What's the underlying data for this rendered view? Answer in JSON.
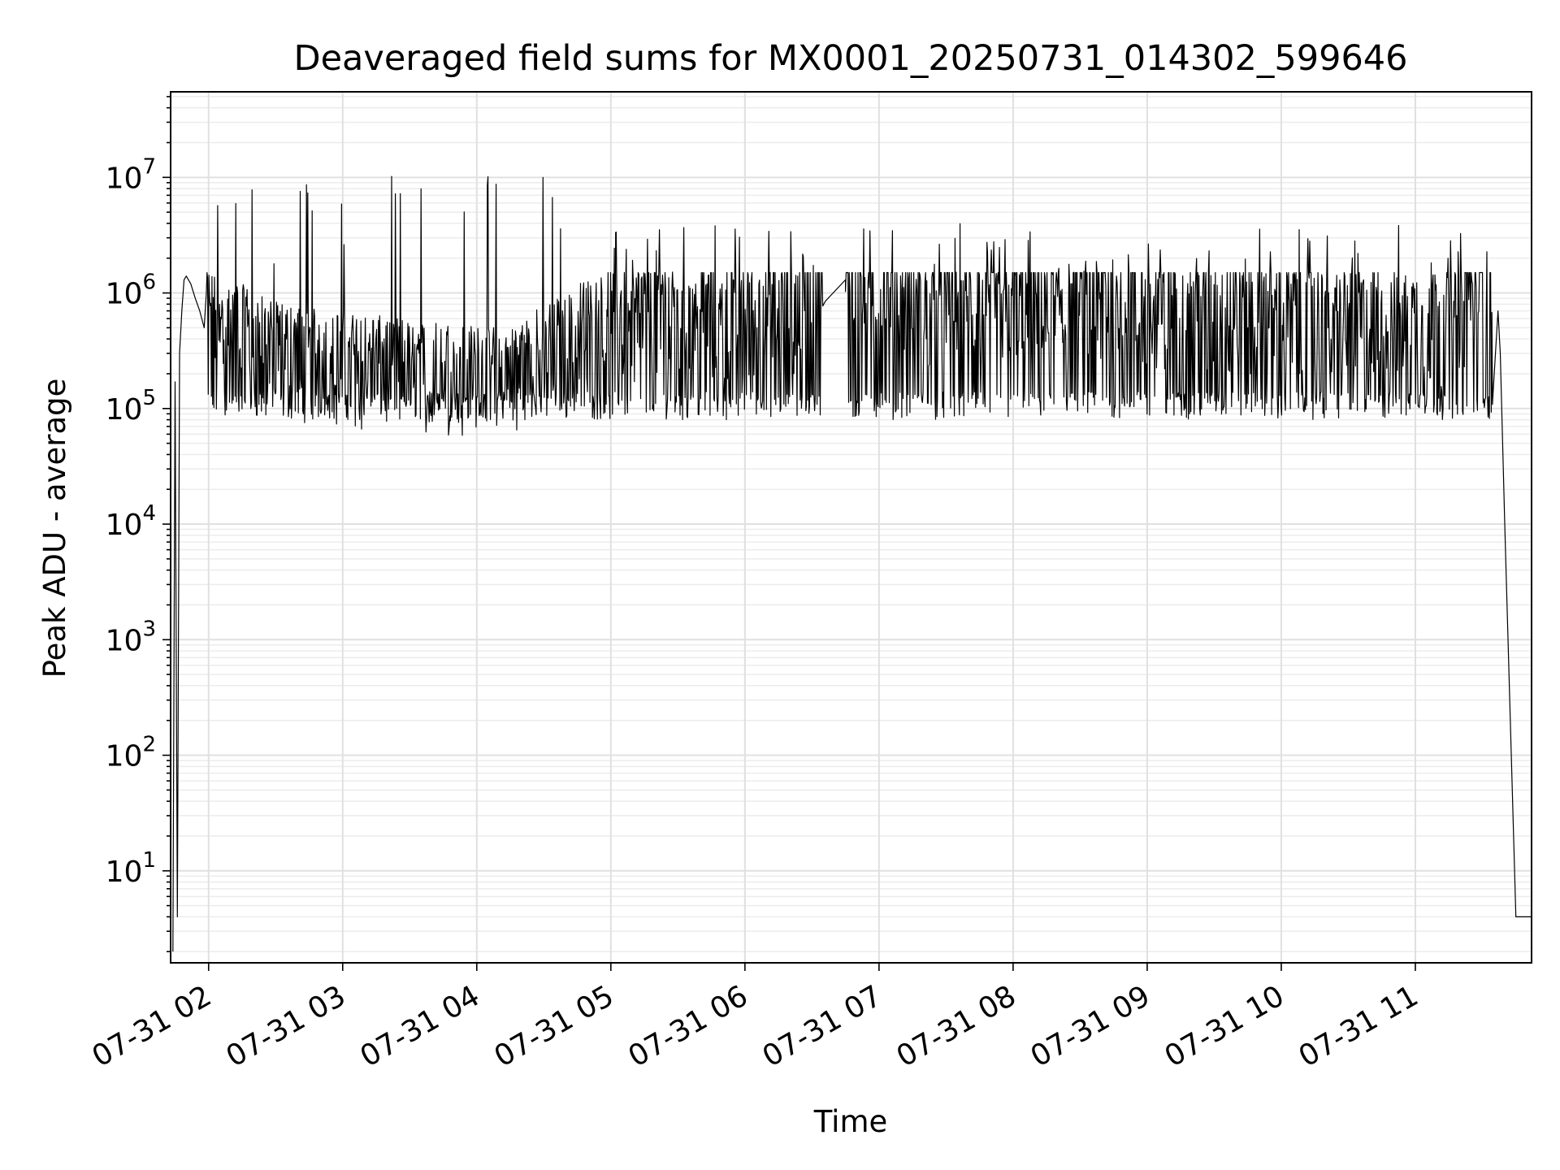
{
  "chart_data": {
    "type": "line",
    "title": "Deaveraged field sums for MX0001_20250731_014302_599646",
    "xlabel": "Time",
    "ylabel": "Peak ADU - average",
    "y_scale": "log",
    "ylim": [
      1.6,
      55000000
    ],
    "xlim": [
      "2025-07-31 01:43",
      "2025-07-31 11:52"
    ],
    "grid": "on (major and minor)",
    "series_color": "#000000",
    "x_ticks": [
      {
        "value": "2025-07-31 02:00",
        "label": "07-31 02"
      },
      {
        "value": "2025-07-31 03:00",
        "label": "07-31 03"
      },
      {
        "value": "2025-07-31 04:00",
        "label": "07-31 04"
      },
      {
        "value": "2025-07-31 05:00",
        "label": "07-31 05"
      },
      {
        "value": "2025-07-31 06:00",
        "label": "07-31 06"
      },
      {
        "value": "2025-07-31 07:00",
        "label": "07-31 07"
      },
      {
        "value": "2025-07-31 08:00",
        "label": "07-31 08"
      },
      {
        "value": "2025-07-31 09:00",
        "label": "07-31 09"
      },
      {
        "value": "2025-07-31 10:00",
        "label": "07-31 10"
      },
      {
        "value": "2025-07-31 11:00",
        "label": "07-31 11"
      }
    ],
    "y_ticks": [
      {
        "value": 10,
        "base": "10",
        "exp": "1"
      },
      {
        "value": 100,
        "base": "10",
        "exp": "2"
      },
      {
        "value": 1000,
        "base": "10",
        "exp": "3"
      },
      {
        "value": 10000,
        "base": "10",
        "exp": "4"
      },
      {
        "value": 100000,
        "base": "10",
        "exp": "5"
      },
      {
        "value": 1000000,
        "base": "10",
        "exp": "6"
      },
      {
        "value": 10000000,
        "base": "10",
        "exp": "7"
      }
    ],
    "series": [
      {
        "x": [
          "2025-07-31 01:44",
          "2025-07-31 01:45",
          "2025-07-31 01:46",
          "2025-07-31 01:47",
          "2025-07-31 01:48",
          "2025-07-31 01:49",
          "2025-07-31 01:50",
          "2025-07-31 01:52",
          "2025-07-31 01:54",
          "2025-07-31 01:56",
          "2025-07-31 01:58",
          "2025-07-31 02:00",
          "2025-07-31 02:05",
          "2025-07-31 02:10",
          "2025-07-31 02:15",
          "2025-07-31 02:20",
          "2025-07-31 02:25",
          "2025-07-31 02:30",
          "2025-07-31 02:40",
          "2025-07-31 02:50",
          "2025-07-31 03:00",
          "2025-07-31 03:15",
          "2025-07-31 03:30",
          "2025-07-31 03:45",
          "2025-07-31 04:00",
          "2025-07-31 04:15",
          "2025-07-31 04:30",
          "2025-07-31 04:45",
          "2025-07-31 05:00",
          "2025-07-31 05:20",
          "2025-07-31 05:40",
          "2025-07-31 06:00",
          "2025-07-31 06:20",
          "2025-07-31 06:36",
          "2025-07-31 06:45",
          "2025-07-31 07:00",
          "2025-07-31 07:30",
          "2025-07-31 08:00",
          "2025-07-31 08:30",
          "2025-07-31 09:00",
          "2025-07-31 09:30",
          "2025-07-31 10:00",
          "2025-07-31 10:30",
          "2025-07-31 10:50",
          "2025-07-31 11:00",
          "2025-07-31 11:10",
          "2025-07-31 11:20",
          "2025-07-31 11:30",
          "2025-07-31 11:35",
          "2025-07-31 11:37",
          "2025-07-31 11:38",
          "2025-07-31 11:40",
          "2025-07-31 11:45",
          "2025-07-31 11:52"
        ],
        "values": [
          2,
          170000,
          4,
          300000,
          700000,
          1300000,
          1400000,
          1200000,
          900000,
          700000,
          500000,
          400000,
          350000,
          320000,
          300000,
          260000,
          230000,
          210000,
          190000,
          180000,
          170000,
          160000,
          150000,
          140000,
          130000,
          130000,
          200000,
          300000,
          400000,
          450000,
          450000,
          450000,
          450000,
          850000,
          1300000,
          550000,
          550000,
          550000,
          550000,
          550000,
          500000,
          450000,
          420000,
          400000,
          380000,
          380000,
          400000,
          800000,
          900000,
          700000,
          300000,
          10000,
          4,
          4
        ]
      }
    ]
  }
}
